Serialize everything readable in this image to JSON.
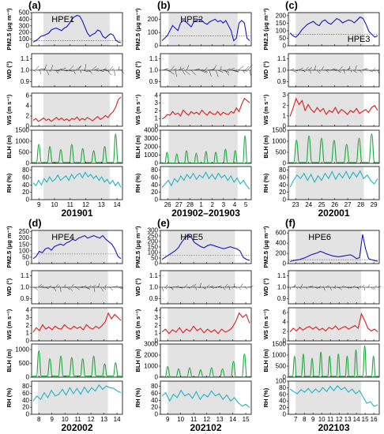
{
  "figure": {
    "row_panels": [
      [
        "a",
        "b",
        "c"
      ],
      [
        "d",
        "e",
        "f"
      ]
    ],
    "ylabels": {
      "pm": "PM2.5 (μg m⁻³)",
      "wd": "WD (°)",
      "ws": "WS (m s⁻¹)",
      "blh": "BLH (m)",
      "rh": "RH (%)"
    }
  },
  "chart_data": [
    {
      "panel": "(a)",
      "hpe": "HPE1",
      "month": "201901",
      "type": "line",
      "x_ticks": [
        "9",
        "10",
        "11",
        "12",
        "13",
        "14"
      ],
      "pm": {
        "yticks": [
          "0",
          "100",
          "200",
          "300",
          "400",
          "500"
        ],
        "max": 500,
        "color": "#1515c8",
        "values": [
          60,
          80,
          110,
          150,
          160,
          180,
          200,
          250,
          270,
          280,
          260,
          240,
          280,
          300,
          350,
          420,
          460,
          480,
          470,
          400,
          300,
          200,
          150,
          180,
          200,
          250,
          230,
          150,
          120,
          160,
          190,
          170,
          90,
          60,
          50
        ]
      },
      "wd": {
        "yticks": [
          "0.9",
          "1.0",
          "1.1"
        ]
      },
      "ws": {
        "yticks": [
          "0",
          "2",
          "4",
          "6"
        ],
        "max": 6.5,
        "color": "#e01a1a",
        "values": [
          1.2,
          1.6,
          1.0,
          1.3,
          1.7,
          1.2,
          1.5,
          1.0,
          1.4,
          1.8,
          1.3,
          1.7,
          1.2,
          1.5,
          1.1,
          1.6,
          1.4,
          1.9,
          1.2,
          1.6,
          1.3,
          1.8,
          1.5,
          1.1,
          1.6,
          2.0,
          1.4,
          1.7,
          2.2,
          1.8,
          2.5,
          3.0,
          4.0,
          5.5,
          6.0
        ]
      },
      "blh": {
        "yticks": [
          "0",
          "500",
          "1000",
          "1500"
        ],
        "max": 1500,
        "color": "#1aa83a",
        "peaks": [
          900,
          800,
          650,
          900,
          700,
          600,
          800,
          1400
        ]
      },
      "rh": {
        "yticks": [
          "0",
          "20",
          "40",
          "60",
          "80"
        ],
        "max": 90,
        "color": "#22b3c6",
        "values": [
          48,
          40,
          55,
          42,
          60,
          50,
          65,
          52,
          58,
          70,
          55,
          62,
          68,
          55,
          72,
          60,
          70,
          75,
          62,
          78,
          65,
          72,
          60,
          68,
          55,
          65,
          50,
          58,
          45,
          55,
          40,
          50,
          35
        ]
      }
    },
    {
      "panel": "(b)",
      "hpe": "HPE2",
      "month": "201902–201903",
      "type": "line",
      "x_ticks": [
        "26",
        "27",
        "28",
        "1",
        "2",
        "3",
        "4",
        "5"
      ],
      "pm": {
        "yticks": [
          "0",
          "100",
          "200"
        ],
        "max": 250,
        "color": "#1515c8",
        "values": [
          40,
          60,
          80,
          120,
          160,
          140,
          120,
          180,
          200,
          190,
          170,
          150,
          190,
          200,
          210,
          200,
          180,
          170,
          190,
          200,
          210,
          190,
          200,
          180,
          200,
          160,
          120,
          40,
          60,
          180,
          200,
          180,
          60,
          40
        ]
      },
      "wd": {
        "yticks": [
          "0.9",
          "1.0",
          "1.1"
        ]
      },
      "ws": {
        "yticks": [
          "0",
          "1",
          "2",
          "3",
          "4"
        ],
        "max": 4.3,
        "color": "#e01a1a",
        "values": [
          1.0,
          1.2,
          1.6,
          1.5,
          2.0,
          1.6,
          1.8,
          1.4,
          2.2,
          1.8,
          1.5,
          2.0,
          1.7,
          1.9,
          1.6,
          2.2,
          1.8,
          1.5,
          2.0,
          1.7,
          1.6,
          2.0,
          1.5,
          1.9,
          1.7,
          1.6,
          2.0,
          1.8,
          2.5,
          2.0,
          3.0,
          3.8,
          3.5,
          3.2
        ]
      },
      "blh": {
        "yticks": [
          "0",
          "1000",
          "2000",
          "3000",
          "4000"
        ],
        "max": 4000,
        "color": "#1aa83a",
        "peaks": [
          1400,
          1200,
          1600,
          1300,
          1500,
          1400,
          1800,
          1600,
          3500
        ]
      },
      "rh": {
        "yticks": [
          "0",
          "20",
          "40",
          "60",
          "80"
        ],
        "max": 90,
        "color": "#22b3c6",
        "values": [
          35,
          45,
          55,
          40,
          60,
          50,
          68,
          55,
          72,
          60,
          75,
          58,
          70,
          62,
          78,
          60,
          72,
          58,
          75,
          62,
          70,
          55,
          68,
          50,
          62,
          45,
          55,
          40,
          30
        ]
      }
    },
    {
      "panel": "(c)",
      "hpe": "HPE3",
      "month": "202001",
      "type": "line",
      "x_ticks": [
        "23",
        "24",
        "25",
        "26",
        "27",
        "28",
        "29"
      ],
      "pm": {
        "yticks": [
          "0",
          "50",
          "100",
          "150",
          "200"
        ],
        "max": 220,
        "color": "#1515c8",
        "values": [
          90,
          70,
          60,
          80,
          110,
          130,
          150,
          160,
          170,
          150,
          140,
          170,
          180,
          160,
          150,
          170,
          190,
          180,
          160,
          170,
          180,
          175,
          160,
          180,
          200,
          190,
          150,
          100,
          80,
          60,
          70
        ]
      },
      "wd": {
        "yticks": [
          "0.9",
          "1.0",
          "1.1"
        ]
      },
      "ws": {
        "yticks": [
          "0",
          "1",
          "2",
          "3"
        ],
        "max": 3.2,
        "color": "#e01a1a",
        "values": [
          1.0,
          1.8,
          2.8,
          2.2,
          2.6,
          1.6,
          2.2,
          1.7,
          1.4,
          1.9,
          1.5,
          1.8,
          1.2,
          1.6,
          1.4,
          1.9,
          1.3,
          1.7,
          1.5,
          1.2,
          1.6,
          1.4,
          1.8,
          1.3,
          1.5,
          1.7,
          1.4,
          1.9,
          2.1,
          1.6
        ]
      },
      "blh": {
        "yticks": [
          "0",
          "500",
          "1000",
          "1500"
        ],
        "max": 1500,
        "color": "#1aa83a",
        "peaks": [
          1100,
          1300,
          1200,
          1100,
          900,
          1200,
          1400
        ]
      },
      "rh": {
        "yticks": [
          "0",
          "20",
          "40",
          "60",
          "80"
        ],
        "max": 90,
        "color": "#22b3c6",
        "values": [
          35,
          55,
          70,
          60,
          75,
          55,
          72,
          50,
          68,
          55,
          75,
          60,
          80,
          58,
          75,
          62,
          80,
          60,
          78,
          65,
          82,
          60,
          70,
          55,
          45,
          60
        ]
      }
    },
    {
      "panel": "(d)",
      "hpe": "HPE4",
      "month": "202002",
      "type": "line",
      "x_ticks": [
        "8",
        "9",
        "10",
        "11",
        "12",
        "13",
        "14"
      ],
      "pm": {
        "yticks": [
          "0",
          "50",
          "100",
          "150",
          "200",
          "250"
        ],
        "max": 260,
        "color": "#1515c8",
        "values": [
          40,
          60,
          100,
          90,
          120,
          130,
          110,
          140,
          150,
          160,
          150,
          170,
          180,
          200,
          190,
          210,
          220,
          230,
          210,
          220,
          230,
          220,
          210,
          230,
          200,
          180,
          160,
          120,
          60,
          40
        ]
      },
      "wd": {
        "yticks": [
          "0.9",
          "1.0",
          "1.1"
        ]
      },
      "ws": {
        "yticks": [
          "0",
          "1",
          "2",
          "3",
          "4"
        ],
        "max": 4.3,
        "color": "#e01a1a",
        "values": [
          1.2,
          1.8,
          1.4,
          2.2,
          1.6,
          1.9,
          1.5,
          2.0,
          1.7,
          1.6,
          2.2,
          1.8,
          1.6,
          2.0,
          1.7,
          1.9,
          1.5,
          2.2,
          1.8,
          1.6,
          2.0,
          1.7,
          2.1,
          2.6,
          3.8,
          3.0,
          3.6,
          3.2,
          2.8
        ]
      },
      "blh": {
        "yticks": [
          "0",
          "500",
          "1000"
        ],
        "max": 1200,
        "color": "#1aa83a",
        "peaks": [
          1000,
          700,
          800,
          750,
          700,
          800,
          500,
          550
        ]
      },
      "rh": {
        "yticks": [
          "0",
          "20",
          "40",
          "60",
          "80"
        ],
        "max": 95,
        "color": "#22b3c6",
        "values": [
          40,
          55,
          45,
          65,
          50,
          72,
          55,
          60,
          75,
          58,
          80,
          62,
          78,
          60,
          82,
          65,
          80,
          70,
          88,
          75,
          85,
          80,
          78,
          70,
          65
        ]
      }
    },
    {
      "panel": "(e)",
      "hpe": "HPE5",
      "month": "202102",
      "type": "line",
      "x_ticks": [
        "9",
        "10",
        "11",
        "12",
        "13",
        "14",
        "15"
      ],
      "pm": {
        "yticks": [
          "0",
          "50",
          "100",
          "150",
          "200",
          "250",
          "300"
        ],
        "max": 300,
        "color": "#1515c8",
        "values": [
          40,
          60,
          80,
          100,
          120,
          150,
          200,
          240,
          270,
          250,
          200,
          180,
          160,
          150,
          170,
          180,
          170,
          160,
          150,
          140,
          150,
          160,
          150,
          140,
          120,
          60,
          40,
          30
        ]
      },
      "wd": {
        "yticks": [
          "0.9",
          "1.0",
          "1.1"
        ]
      },
      "ws": {
        "yticks": [
          "0",
          "1",
          "2",
          "3",
          "4"
        ],
        "max": 4.3,
        "color": "#e01a1a",
        "values": [
          1.2,
          1.6,
          1.0,
          1.5,
          1.2,
          1.8,
          1.1,
          1.6,
          1.3,
          2.0,
          1.4,
          1.7,
          1.1,
          1.6,
          1.2,
          1.5,
          1.0,
          1.6,
          1.2,
          1.4,
          1.8,
          2.6,
          3.8,
          3.2,
          3.6,
          2.4
        ]
      },
      "blh": {
        "yticks": [
          "0",
          "1000",
          "2000",
          "3000"
        ],
        "max": 3000,
        "color": "#1aa83a",
        "peaks": [
          1000,
          800,
          900,
          700,
          900,
          800,
          1500,
          2200
        ]
      },
      "rh": {
        "yticks": [
          "0",
          "20",
          "40",
          "60",
          "80"
        ],
        "max": 95,
        "color": "#22b3c6",
        "values": [
          55,
          65,
          40,
          60,
          50,
          72,
          55,
          62,
          48,
          68,
          45,
          60,
          52,
          70,
          55,
          62,
          45,
          58,
          40,
          50,
          35,
          25,
          30,
          20
        ]
      }
    },
    {
      "panel": "(f)",
      "hpe": "HPE6",
      "month": "202103",
      "type": "line",
      "x_ticks": [
        "7",
        "8",
        "9",
        "10",
        "11",
        "12",
        "13",
        "14",
        "15",
        "16"
      ],
      "pm": {
        "yticks": [
          "0",
          "200",
          "400",
          "600"
        ],
        "max": 650,
        "color": "#1515c8",
        "values": [
          40,
          60,
          70,
          80,
          100,
          120,
          150,
          180,
          200,
          220,
          250,
          230,
          200,
          180,
          160,
          150,
          140,
          150,
          160,
          170,
          180,
          150,
          100,
          120,
          600,
          300,
          100,
          80,
          60,
          50
        ]
      },
      "wd": {
        "yticks": [
          "0.9",
          "1.0",
          "1.1"
        ]
      },
      "ws": {
        "yticks": [
          "0",
          "2",
          "4",
          "6"
        ],
        "max": 7,
        "color": "#e01a1a",
        "values": [
          2.0,
          2.8,
          2.2,
          3.0,
          2.4,
          2.9,
          3.2,
          2.6,
          3.1,
          2.4,
          2.8,
          2.2,
          3.0,
          2.6,
          3.3,
          2.5,
          2.9,
          3.2,
          2.6,
          3.0,
          3.4,
          2.8,
          6.0,
          4.5,
          2.8,
          2.2,
          2.6,
          2.0
        ]
      },
      "blh": {
        "yticks": [
          "0",
          "500",
          "1000",
          "1500"
        ],
        "max": 1500,
        "color": "#1aa83a",
        "peaks": [
          1000,
          1100,
          900,
          1200,
          1000,
          1100,
          1000,
          1300,
          1600,
          1000
        ]
      },
      "rh": {
        "yticks": [
          "0",
          "20",
          "40",
          "60",
          "80",
          "100"
        ],
        "max": 100,
        "color": "#22b3c6",
        "values": [
          80,
          72,
          65,
          78,
          70,
          82,
          68,
          80,
          70,
          85,
          72,
          88,
          75,
          90,
          78,
          85,
          70,
          80,
          65,
          75,
          55,
          35,
          40,
          25,
          30
        ]
      }
    }
  ]
}
